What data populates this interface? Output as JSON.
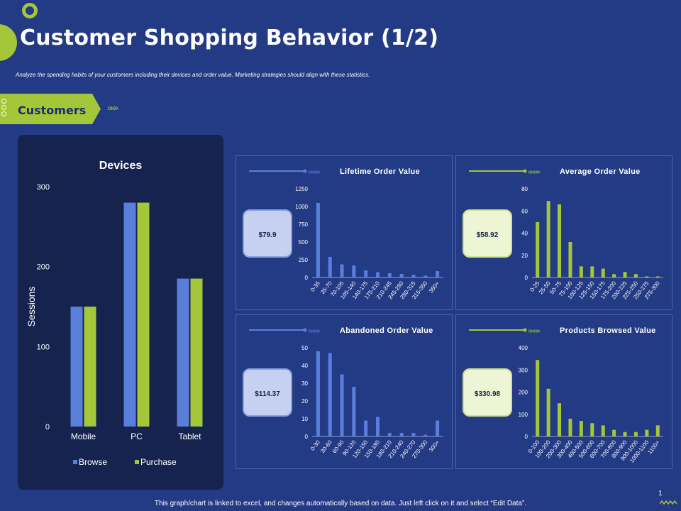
{
  "header": {
    "title": "Customer Shopping Behavior (1/2)",
    "subtitle": "Analyze  the spending  habits of your customers  including their devices and order value.  Marketing strategies should align  with these statistics."
  },
  "section_tab": {
    "label": "Customers",
    "chevrons": "»»»"
  },
  "footer": {
    "note": "This graph/chart is linked to excel, and changes automatically based on data. Just left click on it and select “Edit Data”.",
    "page": "1"
  },
  "colors": {
    "background": "#233a84",
    "accent_green": "#a4c639",
    "accent_blue": "#5a7fdb",
    "panel_dark": "#16234f"
  },
  "chart_data": [
    {
      "id": "devices",
      "type": "bar",
      "title": "Devices",
      "ylabel": "Sessions",
      "xlabel": "",
      "categories": [
        "Mobile",
        "PC",
        "Tablet"
      ],
      "series": [
        {
          "name": "Browse",
          "values": [
            150,
            280,
            185
          ]
        },
        {
          "name": "Purchase",
          "values": [
            150,
            280,
            185
          ]
        }
      ],
      "ylim": [
        0,
        300
      ],
      "yticks": [
        0,
        100,
        200,
        300
      ],
      "legend": "bottom"
    },
    {
      "id": "lifetime",
      "type": "bar",
      "title": "Lifetime Order Value",
      "badge": "$79.9",
      "color": "blue",
      "categories": [
        "0-35",
        "35-70",
        "70-105",
        "105-140",
        "140-175",
        "175-210",
        "210-245",
        "245-280",
        "280-315",
        "315-350",
        "350+"
      ],
      "values": [
        1050,
        290,
        185,
        170,
        100,
        75,
        60,
        50,
        40,
        25,
        90
      ],
      "ylim": [
        0,
        1250
      ],
      "yticks": [
        0,
        250,
        500,
        750,
        1000,
        1250
      ]
    },
    {
      "id": "average",
      "type": "bar",
      "title": "Average Order Value",
      "badge": "$58.92",
      "color": "green",
      "categories": [
        "0-25",
        "25-50",
        "50-75",
        "75-100",
        "100-125",
        "125-150",
        "150-175",
        "175-200",
        "200-225",
        "225-250",
        "250-275",
        "275-300"
      ],
      "values": [
        50,
        69,
        66,
        32,
        10,
        10,
        8,
        3,
        5,
        3,
        1,
        1
      ],
      "ylim": [
        0,
        80
      ],
      "yticks": [
        0,
        20,
        40,
        60,
        80
      ]
    },
    {
      "id": "abandoned",
      "type": "bar",
      "title": "Abandoned Order Value",
      "badge": "$114.37",
      "color": "blue",
      "categories": [
        "0-30",
        "30-60",
        "60-90",
        "90-120",
        "120-150",
        "150-180",
        "180-210",
        "210-240",
        "240-270",
        "270-300",
        "300+"
      ],
      "values": [
        48,
        47,
        35,
        28,
        9,
        11,
        2,
        2,
        2,
        1,
        9
      ],
      "ylim": [
        0,
        50
      ],
      "yticks": [
        0,
        10,
        20,
        30,
        40,
        50
      ]
    },
    {
      "id": "products",
      "type": "bar",
      "title": "Products Browsed Value",
      "badge": "$330.98",
      "color": "green",
      "categories": [
        "0-100",
        "100-200",
        "200-300",
        "300-400",
        "400-500",
        "500-600",
        "600-700",
        "700-800",
        "800-900",
        "900-1000",
        "1000-1100",
        "1100+"
      ],
      "values": [
        345,
        215,
        150,
        80,
        70,
        60,
        50,
        30,
        20,
        20,
        30,
        50
      ],
      "ylim": [
        0,
        400
      ],
      "yticks": [
        0,
        100,
        200,
        300,
        400
      ]
    }
  ]
}
